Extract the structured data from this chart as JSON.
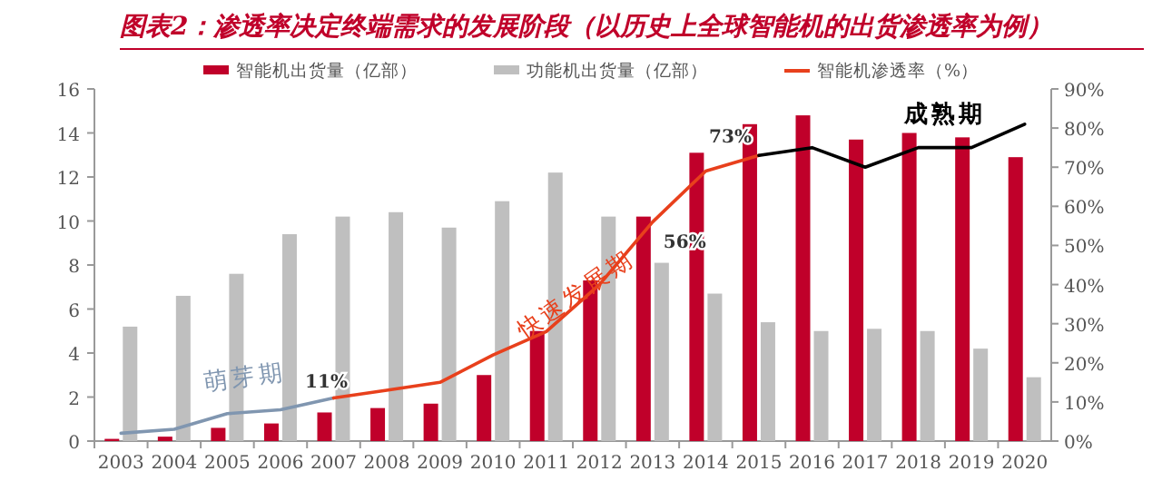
{
  "chart_data": {
    "type": "bar",
    "title": "图表2：渗透率决定终端需求的发展阶段（以历史上全球智能机的出货渗透率为例）",
    "categories": [
      "2003",
      "2004",
      "2005",
      "2006",
      "2007",
      "2008",
      "2009",
      "2010",
      "2011",
      "2012",
      "2013",
      "2014",
      "2015",
      "2016",
      "2017",
      "2018",
      "2019",
      "2020"
    ],
    "series": [
      {
        "name": "智能机出货量（亿部）",
        "color": "#c0002a",
        "values": [
          0.1,
          0.2,
          0.6,
          0.8,
          1.3,
          1.5,
          1.7,
          3.0,
          5.0,
          7.3,
          10.2,
          13.1,
          14.4,
          14.8,
          13.7,
          14.0,
          13.8,
          12.9
        ]
      },
      {
        "name": "功能机出货量（亿部）",
        "color": "#bfbfbf",
        "values": [
          5.2,
          6.6,
          7.6,
          9.4,
          10.2,
          10.4,
          9.7,
          10.9,
          12.2,
          10.2,
          8.1,
          6.7,
          5.4,
          5.0,
          5.1,
          5.0,
          4.2,
          2.9
        ]
      },
      {
        "type": "line",
        "axis": "y2",
        "color": "#8096b0",
        "values": [
          2,
          3,
          7,
          8,
          11,
          null,
          null,
          null,
          null,
          null,
          null,
          null,
          null,
          null,
          null,
          null,
          null,
          null
        ]
      },
      {
        "name": "智能机渗透率（%）",
        "type": "line",
        "axis": "y2",
        "color": "#e8401c",
        "values": [
          null,
          null,
          null,
          null,
          11,
          13,
          15,
          22,
          28,
          40,
          56,
          69,
          73,
          null,
          null,
          null,
          null,
          null
        ],
        "value_labels": [
          null,
          null,
          null,
          null,
          "11%",
          null,
          null,
          null,
          null,
          null,
          "56%",
          null,
          "73%",
          null,
          null,
          null,
          null,
          null
        ]
      },
      {
        "type": "line",
        "axis": "y2",
        "color": "#000000",
        "values": [
          null,
          null,
          null,
          null,
          null,
          null,
          null,
          null,
          null,
          null,
          null,
          null,
          73,
          75,
          70,
          75,
          75,
          81
        ]
      }
    ],
    "ylim": [
      0,
      16
    ],
    "yticks": [
      0,
      2,
      4,
      6,
      8,
      10,
      12,
      14,
      16
    ],
    "y2lim": [
      0,
      90
    ],
    "y2ticks": [
      {
        "value": 0,
        "label": "0%"
      },
      {
        "value": 10,
        "label": "10%"
      },
      {
        "value": 20,
        "label": "20%"
      },
      {
        "value": 30,
        "label": "30%"
      },
      {
        "value": 40,
        "label": "40%"
      },
      {
        "value": 50,
        "label": "50%"
      },
      {
        "value": 60,
        "label": "60%"
      },
      {
        "value": 70,
        "label": "70%"
      },
      {
        "value": 80,
        "label": "80%"
      },
      {
        "value": 90,
        "label": "90%"
      }
    ],
    "annotations": [
      "萌芽期",
      "快速发展期",
      "成熟期"
    ],
    "legend": "top",
    "grid": false
  }
}
